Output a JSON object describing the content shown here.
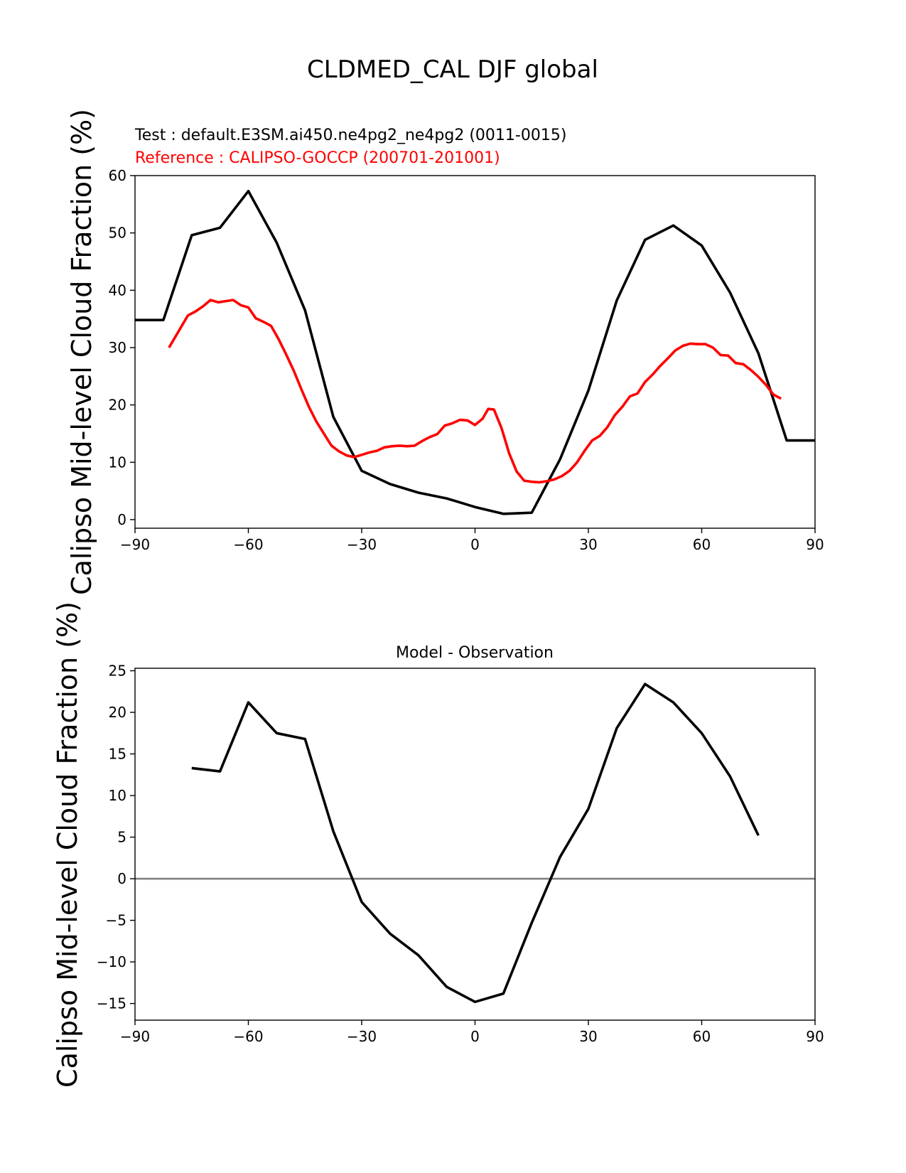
{
  "figure": {
    "title": "CLDMED_CAL DJF global"
  },
  "chart_data": [
    {
      "type": "line",
      "title_lines": [
        {
          "text": "Test : default.E3SM.ai450.ne4pg2_ne4pg2 (0011-0015)",
          "color": "#000000"
        },
        {
          "text": "Reference : CALIPSO-GOCCP (200701-201001)",
          "color": "#ff0000"
        }
      ],
      "xlabel": "",
      "ylabel": "Calipso Mid-level Cloud Fraction (%)",
      "xlim": [
        -90,
        90
      ],
      "ylim": [
        -1.5,
        60
      ],
      "xticks": [
        -90,
        -60,
        -30,
        0,
        30,
        60,
        90
      ],
      "xtick_labels": [
        "−90",
        "−60",
        "−30",
        "0",
        "30",
        "60",
        "90"
      ],
      "yticks": [
        0,
        10,
        20,
        30,
        40,
        50,
        60
      ],
      "ytick_labels": [
        "0",
        "10",
        "20",
        "30",
        "40",
        "50",
        "60"
      ],
      "series": [
        {
          "name": "Test",
          "color": "#000000",
          "x": [
            -90,
            -82.5,
            -75,
            -67.5,
            -60,
            -52.5,
            -45,
            -37.5,
            -30,
            -22.5,
            -15,
            -7.5,
            0,
            7.5,
            15,
            22.5,
            30,
            37.5,
            45,
            52.5,
            60,
            67.5,
            75,
            82.5,
            90
          ],
          "y": [
            34.8,
            34.8,
            49.6,
            50.9,
            57.3,
            48.3,
            36.5,
            17.9,
            8.5,
            6.2,
            4.7,
            3.7,
            2.2,
            1.0,
            1.2,
            10.5,
            22.5,
            38.2,
            48.8,
            51.3,
            47.8,
            39.6,
            29.0,
            13.8,
            13.8
          ]
        },
        {
          "name": "Reference",
          "color": "#ff0000",
          "x": [
            -81,
            -76,
            -74,
            -72,
            -70,
            -68,
            -66,
            -64,
            -62,
            -60,
            -58,
            -56,
            -54,
            -52,
            -50,
            -48,
            -46,
            -44,
            -42,
            -40,
            -38,
            -36,
            -34,
            -32,
            -30,
            -28,
            -26,
            -24,
            -22,
            -20,
            -18,
            -16,
            -14,
            -12,
            -10,
            -8,
            -6,
            -4,
            -2,
            0,
            2,
            3.5,
            5,
            7,
            9,
            11,
            13,
            15,
            17,
            19,
            21,
            23,
            25,
            27,
            29,
            31,
            33,
            35,
            37,
            39,
            41,
            43,
            45,
            47,
            49,
            51,
            53,
            55,
            57,
            59,
            61,
            63,
            65,
            67,
            69,
            71,
            73,
            75,
            77,
            79,
            81
          ],
          "y": [
            30.0,
            35.6,
            36.3,
            37.2,
            38.3,
            37.9,
            38.1,
            38.3,
            37.4,
            37.0,
            35.1,
            34.5,
            33.8,
            31.5,
            28.8,
            26.0,
            22.8,
            19.7,
            17.1,
            15.0,
            12.9,
            11.9,
            11.2,
            10.9,
            11.3,
            11.7,
            12.0,
            12.6,
            12.8,
            12.9,
            12.8,
            12.9,
            13.7,
            14.4,
            14.9,
            16.4,
            16.8,
            17.4,
            17.3,
            16.5,
            17.6,
            19.3,
            19.2,
            16.0,
            11.6,
            8.4,
            6.8,
            6.6,
            6.5,
            6.7,
            7.0,
            7.6,
            8.5,
            10.0,
            12.0,
            13.8,
            14.6,
            16.1,
            18.2,
            19.7,
            21.5,
            22.0,
            24.0,
            25.3,
            26.8,
            28.1,
            29.5,
            30.3,
            30.7,
            30.6,
            30.6,
            30.0,
            28.7,
            28.6,
            27.3,
            27.1,
            26.1,
            24.9,
            23.5,
            21.8,
            21.1
          ]
        }
      ]
    },
    {
      "type": "line",
      "title": "Model - Observation",
      "xlabel": "",
      "ylabel": "Calipso Mid-level Cloud Fraction (%)",
      "xlim": [
        -90,
        90
      ],
      "ylim": [
        -17,
        25.3
      ],
      "xticks": [
        -90,
        -60,
        -30,
        0,
        30,
        60,
        90
      ],
      "xtick_labels": [
        "−90",
        "−60",
        "−30",
        "0",
        "30",
        "60",
        "90"
      ],
      "yticks": [
        -15,
        -10,
        -5,
        0,
        5,
        10,
        15,
        20,
        25
      ],
      "ytick_labels": [
        "−15",
        "−10",
        "−5",
        "0",
        "5",
        "10",
        "15",
        "20",
        "25"
      ],
      "zero_line_color": "#808080",
      "series": [
        {
          "name": "Model - Observation",
          "color": "#000000",
          "x": [
            -75,
            -67.5,
            -60,
            -52.5,
            -45,
            -37.5,
            -30,
            -22.5,
            -15,
            -7.5,
            0,
            7.5,
            15,
            22.5,
            30,
            37.5,
            45,
            52.5,
            60,
            67.5,
            75
          ],
          "y": [
            13.3,
            12.9,
            21.2,
            17.5,
            16.8,
            5.7,
            -2.8,
            -6.6,
            -9.2,
            -13.0,
            -14.8,
            -13.8,
            -5.3,
            2.6,
            8.4,
            18.1,
            23.4,
            21.2,
            17.5,
            12.3,
            5.2
          ]
        }
      ]
    }
  ]
}
